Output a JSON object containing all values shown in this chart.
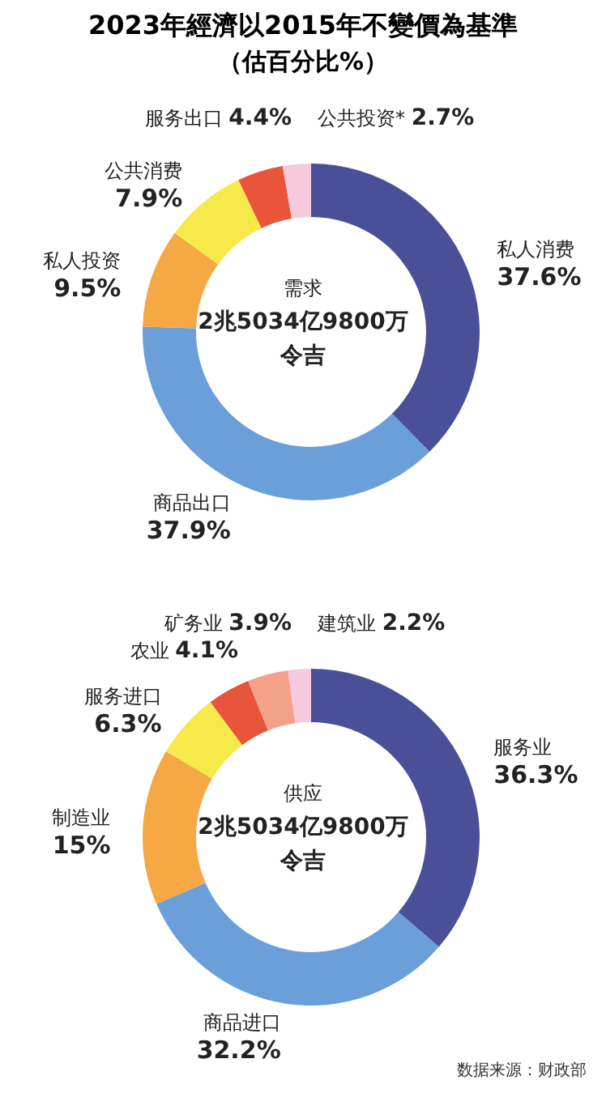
{
  "chart_data": [
    {
      "type": "donut",
      "title": "2023年經濟以2015年不變價為基準",
      "subtitle": "（估百分比%）",
      "categories": [
        "私人消费",
        "商品出口",
        "私人投资",
        "公共消费",
        "服务出口",
        "公共投资*"
      ],
      "values": [
        37.6,
        37.9,
        9.5,
        7.9,
        4.4,
        2.7
      ],
      "value_labels": [
        "37.6%",
        "37.9%",
        "9.5%",
        "7.9%",
        "4.4%",
        "2.7%"
      ],
      "colors": [
        "#4a5097",
        "#6a9fd9",
        "#f5a843",
        "#f8e94a",
        "#e9553b",
        "#f7c9dc"
      ],
      "annotations": [
        "需求",
        "2兆5034亿9800万",
        "令吉"
      ],
      "legend": false
    },
    {
      "type": "donut",
      "categories": [
        "服务业",
        "商品进口",
        "制造业",
        "服务进口",
        "农业",
        "矿务业",
        "建筑业"
      ],
      "values": [
        36.3,
        32.2,
        15,
        6.3,
        4.1,
        3.9,
        2.2
      ],
      "value_labels": [
        "36.3%",
        "32.2%",
        "15%",
        "6.3%",
        "4.1%",
        "3.9%",
        "2.2%"
      ],
      "colors": [
        "#4a5097",
        "#6a9fd9",
        "#f5a843",
        "#f8e94a",
        "#e9553b",
        "#f4a189",
        "#f7c9dc"
      ],
      "annotations": [
        "供应",
        "2兆5034亿9800万",
        "令吉",
        "数据来源：财政部"
      ],
      "legend": false
    }
  ]
}
